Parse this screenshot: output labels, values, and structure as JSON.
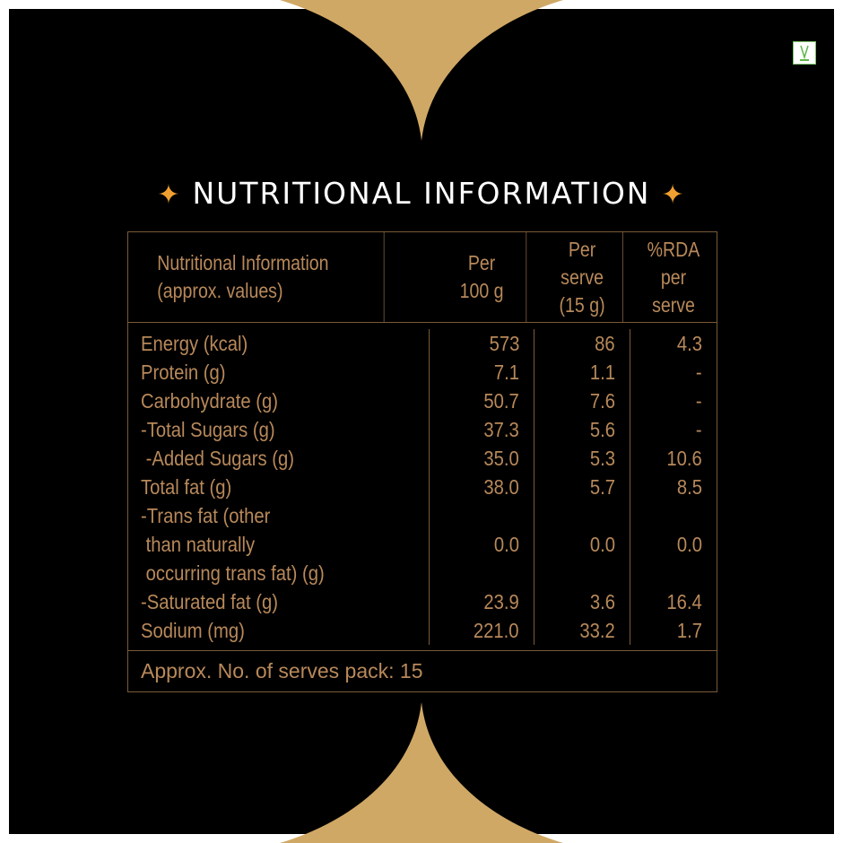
{
  "colors": {
    "gold": "#d0a865",
    "text": "#b8895a",
    "border": "#7a5a3a",
    "star": "#f0a030",
    "background": "#000000"
  },
  "veg_mark": {
    "icon": "veg-v-icon",
    "label": "V"
  },
  "title": "NUTRITIONAL INFORMATION",
  "table": {
    "headers": [
      "Nutritional Information\n(approx. values)",
      "Per\n100 g",
      "Per\nserve\n(15 g)",
      "%RDA\nper\nserve"
    ],
    "rows": [
      {
        "label": "Energy (kcal)",
        "per100": "573",
        "perServe": "86",
        "rda": "4.3"
      },
      {
        "label": "Protein (g)",
        "per100": "7.1",
        "perServe": "1.1",
        "rda": "-"
      },
      {
        "label": "Carbohydrate (g)",
        "per100": "50.7",
        "perServe": "7.6",
        "rda": "-"
      },
      {
        "label": "-Total Sugars (g)",
        "per100": "37.3",
        "perServe": "5.6",
        "rda": "-"
      },
      {
        "label": " -Added Sugars (g)",
        "per100": "35.0",
        "perServe": "5.3",
        "rda": "10.6"
      },
      {
        "label": "Total fat (g)",
        "per100": "38.0",
        "perServe": "5.7",
        "rda": "8.5"
      },
      {
        "label": "-Trans fat (other\n than naturally\n occurring trans fat) (g)",
        "per100": "0.0",
        "perServe": "0.0",
        "rda": "0.0"
      },
      {
        "label": "-Saturated fat (g)",
        "per100": "23.9",
        "perServe": "3.6",
        "rda": "16.4"
      },
      {
        "label": "Sodium (mg)",
        "per100": "221.0",
        "perServe": "33.2",
        "rda": "1.7"
      }
    ],
    "footer": "Approx. No. of serves pack: 15"
  }
}
